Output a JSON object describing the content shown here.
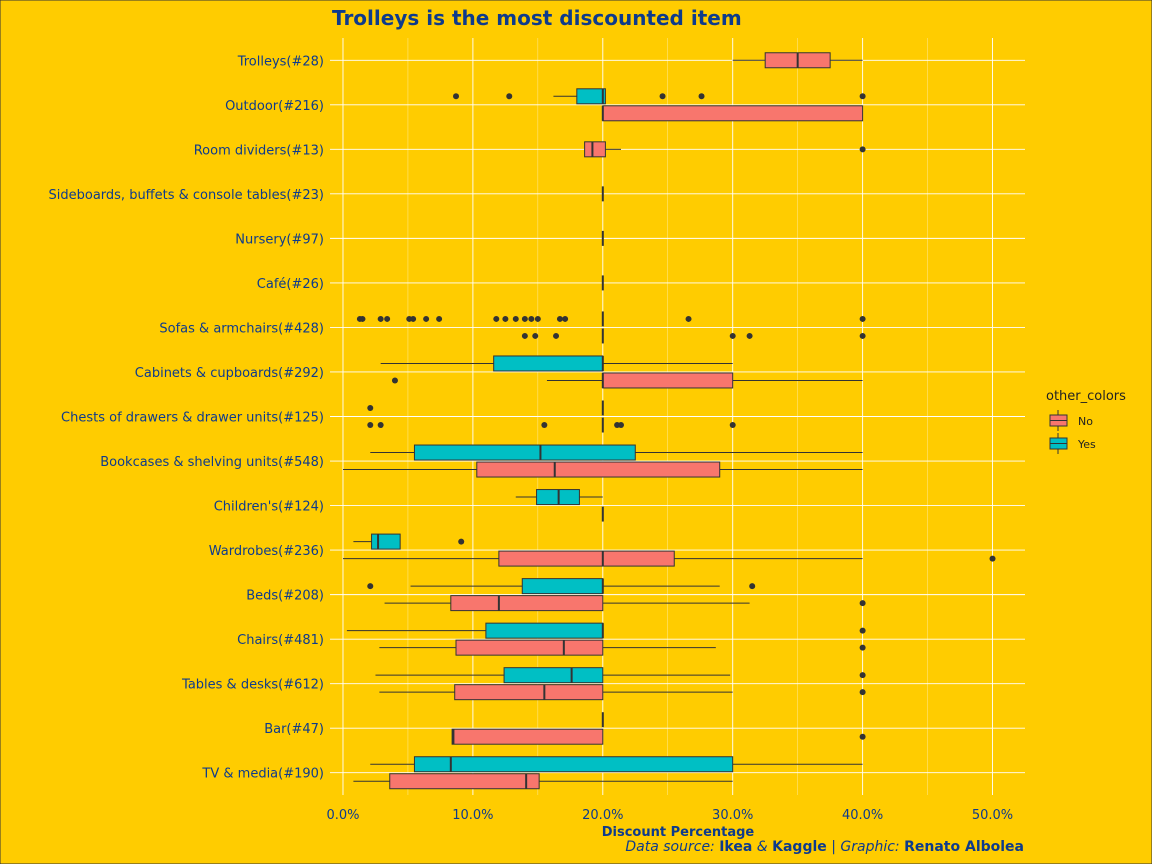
{
  "colors": {
    "background": "#FFCC00",
    "text": "#0E3B8C",
    "grid": "#FFFFFF",
    "box_no": "#F8766D",
    "box_yes": "#00BFC4",
    "outline": "#333333"
  },
  "chart_data": {
    "type": "box",
    "title": "Trolleys is the most discounted item",
    "xlabel": "Discount Percentage",
    "xlim": [
      -0.01,
      0.525
    ],
    "x_ticks": [
      0,
      0.1,
      0.2,
      0.3,
      0.4,
      0.5
    ],
    "x_tick_labels": [
      "0.0%",
      "10.0%",
      "20.0%",
      "30.0%",
      "40.0%",
      "50.0%"
    ],
    "grid": true,
    "legend": {
      "title": "other_colors",
      "position": "right",
      "items": [
        {
          "label": "No",
          "key": "No"
        },
        {
          "label": "Yes",
          "key": "Yes"
        }
      ]
    },
    "caption": {
      "prefix": "Data source: ",
      "source1": "Ikea",
      "amp": " & ",
      "source2": "Kaggle",
      "sep": " | Graphic: ",
      "author": "Renato Albolea"
    },
    "categories": [
      {
        "label": "Trolleys(#28)",
        "groups": [
          {
            "series": "No",
            "whisker_low": 0.3,
            "q1": 0.325,
            "median": 0.35,
            "q3": 0.375,
            "whisker_high": 0.4,
            "outliers": []
          }
        ]
      },
      {
        "label": "Outdoor(#216)",
        "groups": [
          {
            "series": "Yes",
            "whisker_low": 0.162,
            "q1": 0.18,
            "median": 0.2,
            "q3": 0.202,
            "whisker_high": 0.202,
            "outliers": [
              0.087,
              0.128,
              0.246,
              0.276,
              0.4
            ]
          },
          {
            "series": "No",
            "whisker_low": 0.2,
            "q1": 0.2,
            "median": 0.2,
            "q3": 0.4,
            "whisker_high": 0.4,
            "outliers": []
          }
        ]
      },
      {
        "label": "Room dividers(#13)",
        "groups": [
          {
            "series": "No",
            "whisker_low": 0.186,
            "q1": 0.186,
            "median": 0.192,
            "q3": 0.202,
            "whisker_high": 0.214,
            "outliers": [
              0.4
            ]
          }
        ]
      },
      {
        "label": "Sideboards, buffets & console tables(#23)",
        "groups": [
          {
            "series": "No",
            "whisker_low": 0.2,
            "q1": 0.2,
            "median": 0.2,
            "q3": 0.2,
            "whisker_high": 0.2,
            "outliers": []
          }
        ]
      },
      {
        "label": "Nursery(#97)",
        "groups": [
          {
            "series": "No",
            "whisker_low": 0.2,
            "q1": 0.2,
            "median": 0.2,
            "q3": 0.2,
            "whisker_high": 0.2,
            "outliers": []
          }
        ]
      },
      {
        "label": "Café(#26)",
        "groups": [
          {
            "series": "No",
            "whisker_low": 0.2,
            "q1": 0.2,
            "median": 0.2,
            "q3": 0.2,
            "whisker_high": 0.2,
            "outliers": []
          }
        ]
      },
      {
        "label": "Sofas & armchairs(#428)",
        "groups": [
          {
            "series": "Yes",
            "whisker_low": 0.2,
            "q1": 0.2,
            "median": 0.2,
            "q3": 0.2,
            "whisker_high": 0.2,
            "outliers": [
              0.013,
              0.015,
              0.029,
              0.034,
              0.051,
              0.054,
              0.064,
              0.074,
              0.118,
              0.125,
              0.133,
              0.14,
              0.145,
              0.15,
              0.167,
              0.171,
              0.266,
              0.4
            ]
          },
          {
            "series": "No",
            "whisker_low": 0.2,
            "q1": 0.2,
            "median": 0.2,
            "q3": 0.2,
            "whisker_high": 0.2,
            "outliers": [
              0.14,
              0.148,
              0.164,
              0.3,
              0.313,
              0.4
            ]
          }
        ]
      },
      {
        "label": "Cabinets & cupboards(#292)",
        "groups": [
          {
            "series": "Yes",
            "whisker_low": 0.029,
            "q1": 0.116,
            "median": 0.2,
            "q3": 0.2,
            "whisker_high": 0.3,
            "outliers": []
          },
          {
            "series": "No",
            "whisker_low": 0.157,
            "q1": 0.2,
            "median": 0.2,
            "q3": 0.3,
            "whisker_high": 0.4,
            "outliers": [
              0.04
            ]
          }
        ]
      },
      {
        "label": "Chests of drawers & drawer units(#125)",
        "groups": [
          {
            "series": "Yes",
            "whisker_low": 0.2,
            "q1": 0.2,
            "median": 0.2,
            "q3": 0.2,
            "whisker_high": 0.2,
            "outliers": [
              0.021
            ]
          },
          {
            "series": "No",
            "whisker_low": 0.2,
            "q1": 0.2,
            "median": 0.2,
            "q3": 0.2,
            "whisker_high": 0.2,
            "outliers": [
              0.021,
              0.029,
              0.155,
              0.211,
              0.214,
              0.3
            ]
          }
        ]
      },
      {
        "label": "Bookcases & shelving units(#548)",
        "groups": [
          {
            "series": "Yes",
            "whisker_low": 0.021,
            "q1": 0.055,
            "median": 0.152,
            "q3": 0.225,
            "whisker_high": 0.4,
            "outliers": []
          },
          {
            "series": "No",
            "whisker_low": 0.0,
            "q1": 0.103,
            "median": 0.163,
            "q3": 0.29,
            "whisker_high": 0.4,
            "outliers": []
          }
        ]
      },
      {
        "label": "Children's(#124)",
        "groups": [
          {
            "series": "Yes",
            "whisker_low": 0.133,
            "q1": 0.149,
            "median": 0.166,
            "q3": 0.182,
            "whisker_high": 0.2,
            "outliers": []
          },
          {
            "series": "No",
            "whisker_low": 0.2,
            "q1": 0.2,
            "median": 0.2,
            "q3": 0.2,
            "whisker_high": 0.2,
            "outliers": []
          }
        ]
      },
      {
        "label": "Wardrobes(#236)",
        "groups": [
          {
            "series": "Yes",
            "whisker_low": 0.008,
            "q1": 0.022,
            "median": 0.027,
            "q3": 0.044,
            "whisker_high": 0.044,
            "outliers": [
              0.091
            ]
          },
          {
            "series": "No",
            "whisker_low": 0.0,
            "q1": 0.12,
            "median": 0.2,
            "q3": 0.255,
            "whisker_high": 0.4,
            "outliers": [
              0.5
            ]
          }
        ]
      },
      {
        "label": "Beds(#208)",
        "groups": [
          {
            "series": "Yes",
            "whisker_low": 0.052,
            "q1": 0.138,
            "median": 0.2,
            "q3": 0.2,
            "whisker_high": 0.29,
            "outliers": [
              0.021,
              0.315
            ]
          },
          {
            "series": "No",
            "whisker_low": 0.032,
            "q1": 0.083,
            "median": 0.12,
            "q3": 0.2,
            "whisker_high": 0.313,
            "outliers": [
              0.4
            ]
          }
        ]
      },
      {
        "label": "Chairs(#481)",
        "groups": [
          {
            "series": "Yes",
            "whisker_low": 0.003,
            "q1": 0.11,
            "median": 0.2,
            "q3": 0.2,
            "whisker_high": 0.2,
            "outliers": [
              0.4
            ]
          },
          {
            "series": "No",
            "whisker_low": 0.028,
            "q1": 0.087,
            "median": 0.17,
            "q3": 0.2,
            "whisker_high": 0.287,
            "outliers": [
              0.4
            ]
          }
        ]
      },
      {
        "label": "Tables & desks(#612)",
        "groups": [
          {
            "series": "Yes",
            "whisker_low": 0.025,
            "q1": 0.124,
            "median": 0.176,
            "q3": 0.2,
            "whisker_high": 0.298,
            "outliers": [
              0.4
            ]
          },
          {
            "series": "No",
            "whisker_low": 0.028,
            "q1": 0.086,
            "median": 0.155,
            "q3": 0.2,
            "whisker_high": 0.3,
            "outliers": [
              0.4
            ]
          }
        ]
      },
      {
        "label": "Bar(#47)",
        "groups": [
          {
            "series": "Yes",
            "whisker_low": 0.2,
            "q1": 0.2,
            "median": 0.2,
            "q3": 0.2,
            "whisker_high": 0.2,
            "outliers": []
          },
          {
            "series": "No",
            "whisker_low": 0.084,
            "q1": 0.084,
            "median": 0.085,
            "q3": 0.2,
            "whisker_high": 0.2,
            "outliers": [
              0.4
            ]
          }
        ]
      },
      {
        "label": "TV & media(#190)",
        "groups": [
          {
            "series": "Yes",
            "whisker_low": 0.021,
            "q1": 0.055,
            "median": 0.083,
            "q3": 0.3,
            "whisker_high": 0.4,
            "outliers": []
          },
          {
            "series": "No",
            "whisker_low": 0.008,
            "q1": 0.036,
            "median": 0.141,
            "q3": 0.151,
            "whisker_high": 0.3,
            "outliers": []
          }
        ]
      }
    ]
  }
}
